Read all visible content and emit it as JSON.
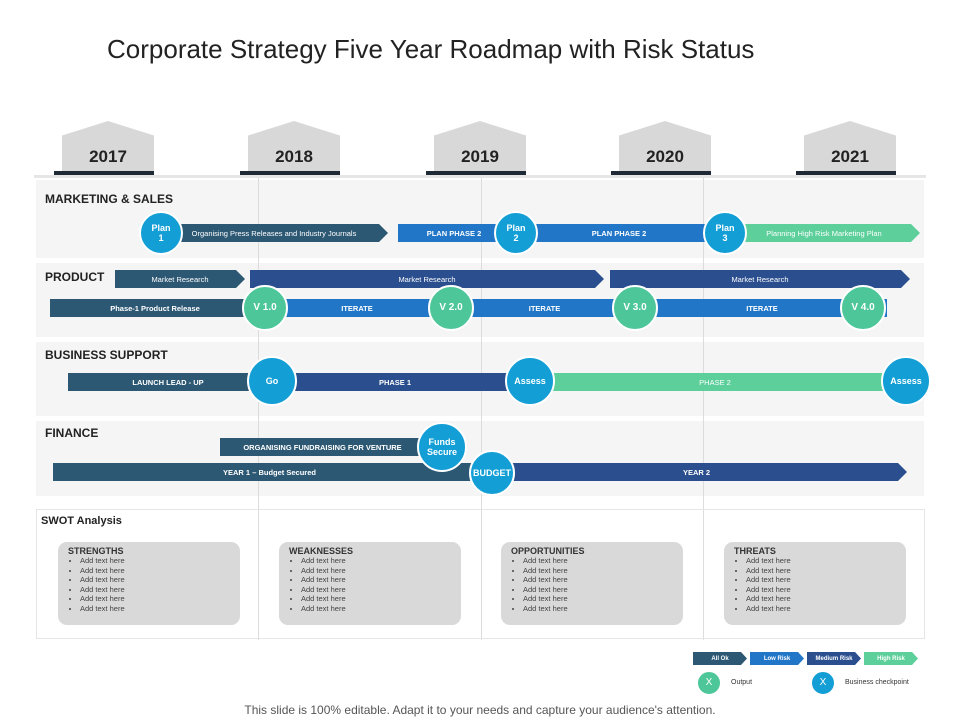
{
  "title": "Corporate Strategy Five Year Roadmap with Risk Status",
  "years": [
    "2017",
    "2018",
    "2019",
    "2020",
    "2021"
  ],
  "sections": {
    "marketing": {
      "label": "MARKETING & SALES",
      "bars": [
        "Organising Press Releases and Industry Journals",
        "PLAN PHASE 2",
        "PLAN PHASE 2",
        "Planning High Risk Marketing Plan"
      ],
      "checkpoints": [
        "Plan\n1",
        "Plan\n2",
        "Plan\n3"
      ]
    },
    "product": {
      "label": "PRODUCT",
      "research": [
        "Market Research",
        "Market Research",
        "Market Research"
      ],
      "bars": [
        "Phase-1 Product Release",
        "ITERATE",
        "ITERATE",
        "ITERATE"
      ],
      "versions": [
        "V 1.0",
        "V 2.0",
        "V 3.0",
        "V 4.0"
      ]
    },
    "business": {
      "label": "BUSINESS SUPPORT",
      "bars": [
        "LAUNCH LEAD - UP",
        "PHASE 1",
        "PHASE 2"
      ],
      "checkpoints": [
        "Go",
        "Assess",
        "Assess"
      ]
    },
    "finance": {
      "label": "FINANCE",
      "bars": [
        "ORGANISING FUNDRAISING FOR VENTURE",
        "YEAR 1 – Budget Secured",
        "YEAR 2"
      ],
      "checkpoints": [
        "Funds\nSecure",
        "BUDGET"
      ]
    }
  },
  "swot": {
    "title": "SWOT Analysis",
    "boxes": [
      {
        "heading": "STRENGTHS",
        "items": [
          "Add text here",
          "Add text here",
          "Add text here",
          "Add text here",
          "Add text here",
          "Add text here"
        ]
      },
      {
        "heading": "WEAKNESSES",
        "items": [
          "Add text here",
          "Add text here",
          "Add text here",
          "Add text here",
          "Add text here",
          "Add text here"
        ]
      },
      {
        "heading": "OPPORTUNITIES",
        "items": [
          "Add text here",
          "Add text here",
          "Add text here",
          "Add text here",
          "Add text here",
          "Add text here"
        ]
      },
      {
        "heading": "THREATS",
        "items": [
          "Add text here",
          "Add text here",
          "Add text here",
          "Add text here",
          "Add text here",
          "Add text here"
        ]
      }
    ]
  },
  "legend": {
    "risk": [
      "All Ok",
      "Low Risk",
      "Medium Risk",
      "High Risk"
    ],
    "output_symbol": "X",
    "output_label": "Output",
    "checkpoint_symbol": "X",
    "checkpoint_label": "Business checkpoint"
  },
  "colors": {
    "all_ok": "#2d5874",
    "low_risk": "#2176c7",
    "medium_risk": "#2a4e8e",
    "high_risk": "#5ccf9b",
    "checkpoint": "#139fd6",
    "output": "#4dc69a"
  },
  "footer": "This slide is 100% editable. Adapt it to your needs and capture your audience's attention."
}
